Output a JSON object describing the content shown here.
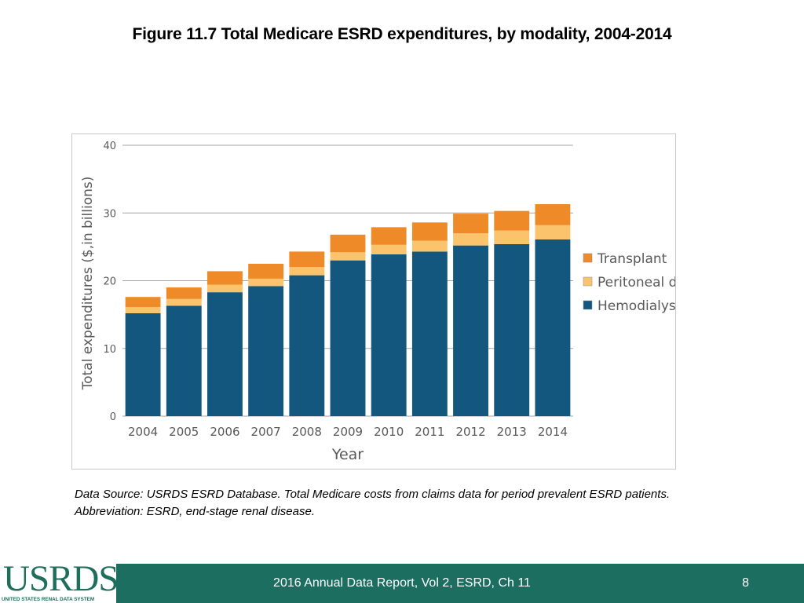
{
  "slide": {
    "title": "Figure 11.7 Total Medicare ESRD expenditures, by modality, 2004-2014",
    "source_note": "Data Source: USRDS ESRD Database. Total Medicare costs from claims data for period prevalent ESRD patients. Abbreviation: ESRD, end-stage renal disease.",
    "footer_text": "2016 Annual Data Report, Vol 2, ESRD, Ch 11",
    "page_number": "8",
    "logo_text": "USRDS",
    "logo_subtitle": "UNITED STATES RENAL DATA SYSTEM"
  },
  "colors": {
    "hemodialysis": "#13577f",
    "peritoneal": "#fbc46c",
    "transplant": "#ef8a28",
    "footer": "#1b6e60",
    "logo": "#1e6e5c"
  },
  "chart_data": {
    "type": "bar",
    "stacked": true,
    "title": "",
    "xlabel": "Year",
    "ylabel": "Total expenditures ($,in billions)",
    "ylim": [
      0,
      40
    ],
    "yticks": [
      "0",
      "10",
      "20",
      "30",
      "40"
    ],
    "grid": true,
    "legend_position": "right",
    "categories": [
      "2004",
      "2005",
      "2006",
      "2007",
      "2008",
      "2009",
      "2010",
      "2011",
      "2012",
      "2013",
      "2014"
    ],
    "series": [
      {
        "name": "Hemodialysis",
        "color": "#13577f",
        "values": [
          15.2,
          16.3,
          18.3,
          19.2,
          20.8,
          23.0,
          23.9,
          24.3,
          25.2,
          25.4,
          26.1
        ]
      },
      {
        "name": "Peritoneal dialysis",
        "color": "#fbc46c",
        "values": [
          0.9,
          1.0,
          1.1,
          1.1,
          1.2,
          1.2,
          1.4,
          1.6,
          1.8,
          2.0,
          2.1
        ]
      },
      {
        "name": "Transplant",
        "color": "#ef8a28",
        "values": [
          1.5,
          1.7,
          2.0,
          2.2,
          2.3,
          2.6,
          2.6,
          2.7,
          2.9,
          2.9,
          3.1
        ]
      }
    ],
    "legend_order": [
      "Transplant",
      "Peritoneal dialysis",
      "Hemodialysis"
    ]
  }
}
